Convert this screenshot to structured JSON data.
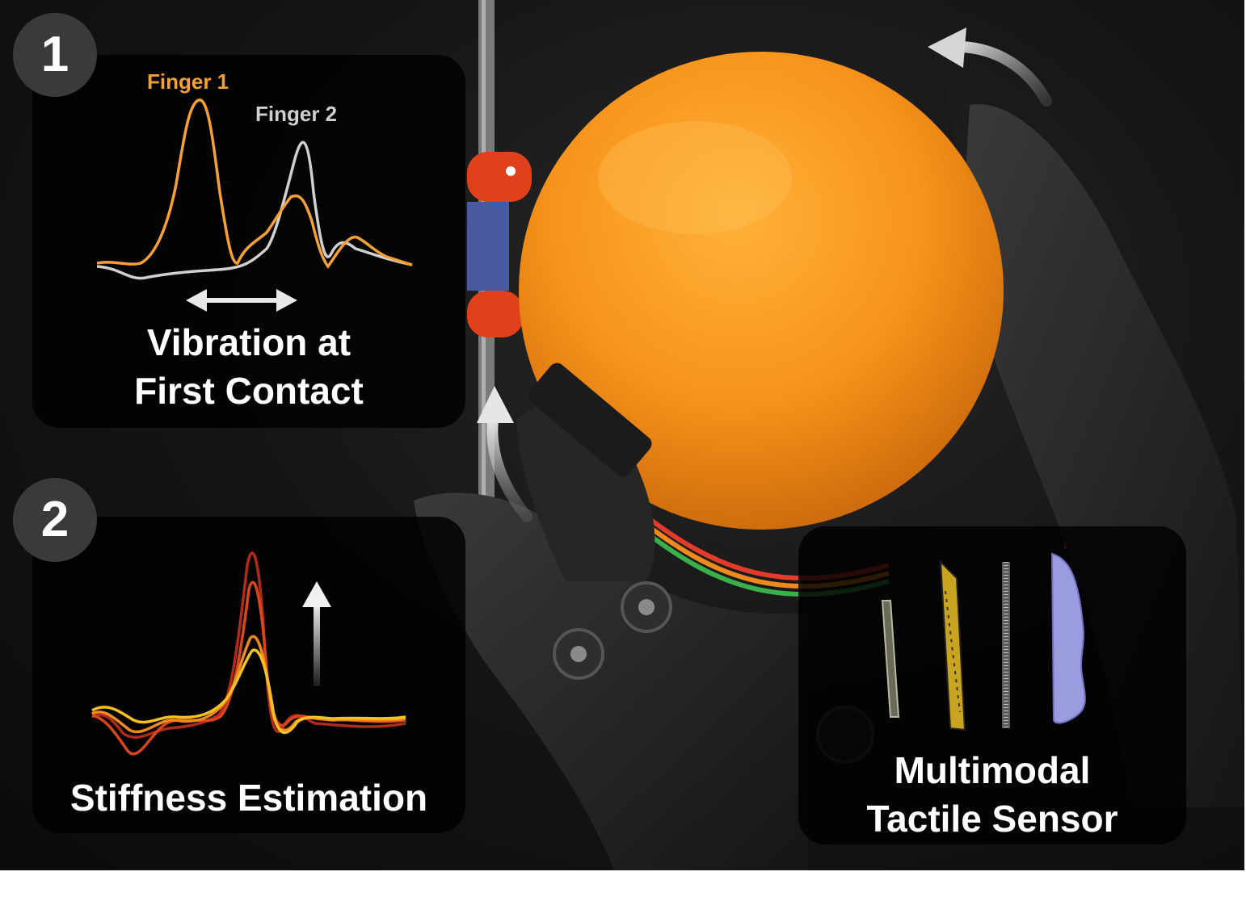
{
  "panel1": {
    "badge": "1",
    "legend": {
      "finger1": "Finger 1",
      "finger2": "Finger 2"
    },
    "caption": [
      "Vibration at",
      "First Contact"
    ],
    "colors": {
      "finger1": "#f7a035",
      "finger2": "#d0d0d0"
    }
  },
  "panel2": {
    "badge": "2",
    "caption": "Stiffness Estimation",
    "colors": [
      "#b02a1c",
      "#d9461e",
      "#f08a1e",
      "#f7c21e"
    ]
  },
  "panel3": {
    "caption": [
      "Multimodal",
      "Tactile Sensor"
    ],
    "layers": [
      "pcb-disc",
      "sensor-array",
      "comb-layer",
      "silicone-skin"
    ]
  },
  "scene": {
    "object": "orange",
    "hand": "robotic-hand",
    "arrows": [
      "rotation-arrow-top",
      "rotation-arrow-left"
    ]
  }
}
